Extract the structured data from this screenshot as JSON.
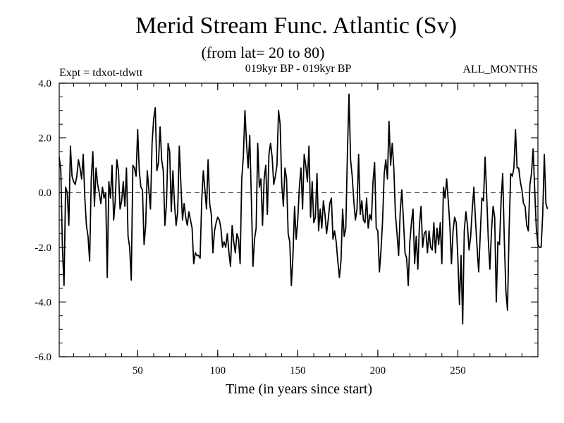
{
  "header": {
    "title": "Merid Stream Func. Atlantic (Sv)",
    "subtitle": "(from lat= 20 to 80)",
    "expt": "Expt = tdxot-tdwtt",
    "period": "019kyr BP - 019kyr BP",
    "months": "ALL_MONTHS"
  },
  "chart_data": {
    "type": "line",
    "xlabel": "Time (in years since start)",
    "ylabel": "",
    "xlim": [
      1,
      300
    ],
    "ylim": [
      -6.0,
      4.0
    ],
    "x_ticks": [
      50,
      100,
      150,
      200,
      250
    ],
    "x_tick_labels": [
      "50",
      "100",
      "150",
      "200",
      "250"
    ],
    "y_ticks": [
      -6.0,
      -4.0,
      -2.0,
      0.0,
      2.0,
      4.0
    ],
    "y_tick_labels": [
      "-6.0",
      "-4.0",
      "-2.0",
      "0.0",
      "2.0",
      "4.0"
    ],
    "reference_line": 0.0,
    "grid": false,
    "line_color": "#000000",
    "series": [
      {
        "x_start": 1,
        "x_step": 1,
        "values": [
          1.3,
          0.8,
          -2.0,
          -3.4,
          0.2,
          0.0,
          -1.2,
          1.7,
          0.6,
          0.4,
          0.3,
          0.6,
          1.2,
          0.9,
          0.5,
          1.4,
          -0.2,
          -1.2,
          -1.6,
          -2.5,
          0.5,
          1.5,
          -0.5,
          0.9,
          0.3,
          0.0,
          -0.4,
          0.2,
          -0.2,
          0.0,
          -3.1,
          0.4,
          -0.2,
          1.0,
          -1.0,
          -0.3,
          1.2,
          0.8,
          -0.6,
          -0.3,
          0.4,
          -0.5,
          0.9,
          -1.6,
          -2.0,
          -3.2,
          1.0,
          0.9,
          0.6,
          2.3,
          0.8,
          0.2,
          0.1,
          -1.9,
          -1.2,
          0.8,
          0.1,
          -0.6,
          1.8,
          2.7,
          3.1,
          0.8,
          1.1,
          2.4,
          1.2,
          0.8,
          -1.2,
          -0.4,
          1.8,
          1.5,
          -0.7,
          0.8,
          -0.4,
          -1.2,
          -0.7,
          1.7,
          0.3,
          -1.0,
          -0.4,
          -0.9,
          -1.2,
          -0.7,
          -1.0,
          -1.3,
          -2.6,
          -2.2,
          -2.3,
          -2.3,
          -2.4,
          -0.3,
          0.8,
          0.1,
          -0.6,
          1.2,
          -0.4,
          -0.8,
          -2.2,
          -1.4,
          -1.1,
          -0.9,
          -1.0,
          -1.3,
          -2.0,
          -1.8,
          -2.0,
          -1.5,
          -2.2,
          -2.7,
          -1.2,
          -1.8,
          -2.2,
          -1.5,
          -1.7,
          -2.6,
          0.5,
          1.3,
          3.0,
          1.8,
          0.9,
          2.1,
          -0.2,
          -2.7,
          -1.7,
          -1.3,
          1.8,
          0.2,
          0.5,
          -1.2,
          0.5,
          1.0,
          -0.8,
          1.4,
          1.8,
          1.3,
          0.3,
          0.6,
          1.0,
          3.0,
          2.5,
          0.3,
          -0.5,
          0.9,
          0.5,
          -1.5,
          -1.8,
          -3.4,
          -2.3,
          -0.5,
          -1.7,
          -1.0,
          0.2,
          0.9,
          -0.6,
          1.4,
          1.0,
          0.4,
          1.7,
          -0.9,
          0.4,
          -1.1,
          -0.9,
          0.7,
          -1.4,
          -0.6,
          -1.3,
          -0.3,
          -0.8,
          -1.5,
          -1.0,
          -0.4,
          -0.2,
          -1.7,
          -1.4,
          -1.8,
          -2.5,
          -3.1,
          -2.5,
          -0.6,
          -1.6,
          -1.3,
          1.4,
          3.6,
          1.2,
          0.6,
          -0.3,
          -1.0,
          -0.6,
          1.4,
          -0.8,
          -0.3,
          -1.0,
          -1.1,
          -0.2,
          -1.3,
          -0.8,
          -1.0,
          0.4,
          1.1,
          -1.3,
          -1.4,
          -2.9,
          -2.1,
          -1.0,
          0.7,
          1.2,
          0.5,
          2.6,
          1.0,
          1.8,
          0.9,
          -0.8,
          -1.5,
          -2.3,
          -0.7,
          0.1,
          -1.0,
          -2.2,
          -2.4,
          -3.4,
          -1.8,
          -1.1,
          -0.6,
          -2.6,
          -1.6,
          -2.8,
          -1.2,
          -0.5,
          -2.0,
          -1.5,
          -1.4,
          -2.2,
          -1.4,
          -2.0,
          -2.1,
          -1.1,
          -2.2,
          -1.3,
          -1.9,
          -1.1,
          -2.6,
          0.2,
          -0.2,
          0.5,
          -0.3,
          -1.2,
          -2.6,
          -1.4,
          -0.9,
          -1.1,
          -2.4,
          -4.1,
          -2.3,
          -4.8,
          -1.4,
          -0.7,
          -1.2,
          -2.1,
          -1.6,
          -0.6,
          0.2,
          -1.0,
          -2.0,
          -2.9,
          -1.5,
          -0.2,
          -0.3,
          1.3,
          -0.1,
          -1.7,
          -2.8,
          -1.4,
          -0.5,
          -0.9,
          -4.0,
          -1.8,
          -1.9,
          -0.3,
          0.7,
          -1.7,
          -3.6,
          -4.3,
          -1.4,
          0.7,
          0.6,
          0.9,
          2.3,
          0.9,
          0.9,
          0.4,
          0.1,
          -0.4,
          -0.5,
          -1.2,
          -1.4,
          0.3,
          0.7,
          1.6,
          0.1,
          -1.3,
          -1.9,
          -2.0,
          -2.0,
          -0.8,
          1.4,
          -0.4,
          -0.6
        ]
      }
    ]
  }
}
